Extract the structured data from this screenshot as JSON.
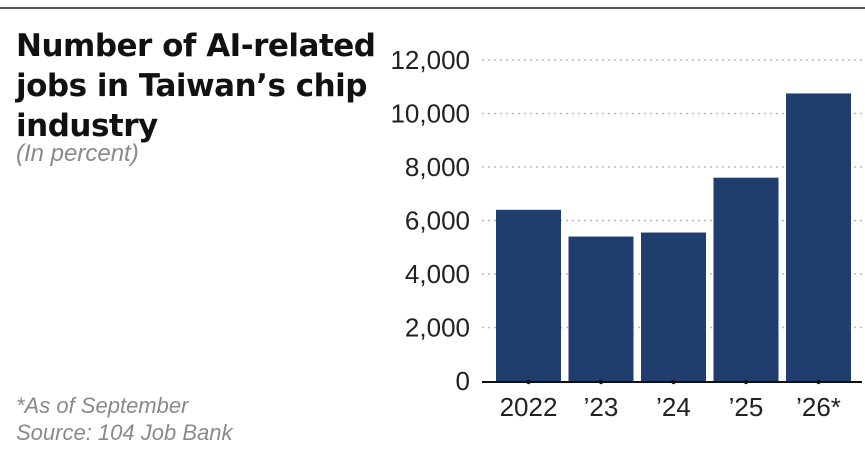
{
  "title": "Number of AI-related jobs in Taiwan’s chip industry",
  "subtitle": "(In percent)",
  "footnote": "*As of September",
  "source": "Source: 104 Job Bank",
  "colors": {
    "bar": "#1f3e6e",
    "grid": "#bbbbbb",
    "axis": "#111111"
  },
  "chart_data": {
    "type": "bar",
    "categories": [
      "2022",
      "’23",
      "’24",
      "’25",
      "’26*"
    ],
    "values": [
      6400,
      5400,
      5550,
      7600,
      10750
    ],
    "yticks": [
      "0",
      "2,000",
      "4,000",
      "6,000",
      "8,000",
      "10,000",
      "12,000"
    ],
    "ytick_values": [
      0,
      2000,
      4000,
      6000,
      8000,
      10000,
      12000
    ],
    "ylim": [
      0,
      12000
    ],
    "xlabel": "",
    "ylabel": "",
    "grid": true,
    "grid_style": "dotted"
  }
}
